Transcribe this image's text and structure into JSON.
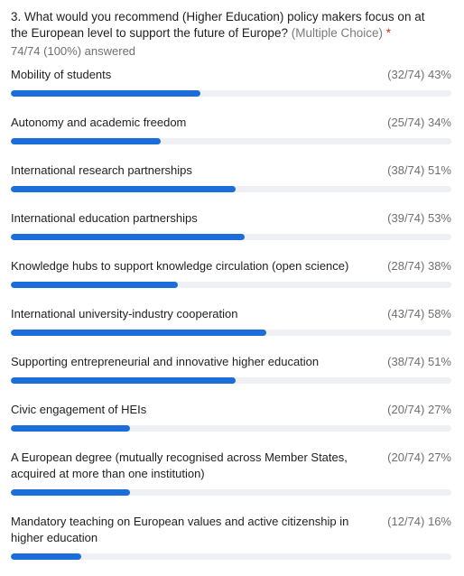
{
  "question": {
    "text": "3. What would you recommend (Higher Education) policy makers focus on at the European level to support the future of Europe?",
    "type_label": "(Multiple Choice)",
    "required_mark": "*",
    "answered": "74/74 (100%) answered"
  },
  "colors": {
    "bar_fill": "#1a6ddb",
    "bar_track": "#eef0f4",
    "required": "#d93025"
  },
  "options": [
    {
      "label": "Mobility of students",
      "stats": "(32/74) 43%",
      "percent": 43
    },
    {
      "label": "Autonomy and academic freedom",
      "stats": "(25/74) 34%",
      "percent": 34
    },
    {
      "label": "International research partnerships",
      "stats": "(38/74) 51%",
      "percent": 51
    },
    {
      "label": "International education partnerships",
      "stats": "(39/74) 53%",
      "percent": 53
    },
    {
      "label": "Knowledge hubs to support knowledge circulation (open science)",
      "stats": "(28/74) 38%",
      "percent": 38
    },
    {
      "label": "International university-industry cooperation",
      "stats": "(43/74) 58%",
      "percent": 58
    },
    {
      "label": "Supporting entrepreneurial and innovative higher education",
      "stats": "(38/74) 51%",
      "percent": 51
    },
    {
      "label": "Civic engagement of HEIs",
      "stats": "(20/74) 27%",
      "percent": 27
    },
    {
      "label": "A European degree (mutually recognised across Member States, acquired at more than one institution)",
      "stats": "(20/74) 27%",
      "percent": 27
    },
    {
      "label": "Mandatory teaching on European values and active citizenship in higher education",
      "stats": "(12/74) 16%",
      "percent": 16
    }
  ]
}
